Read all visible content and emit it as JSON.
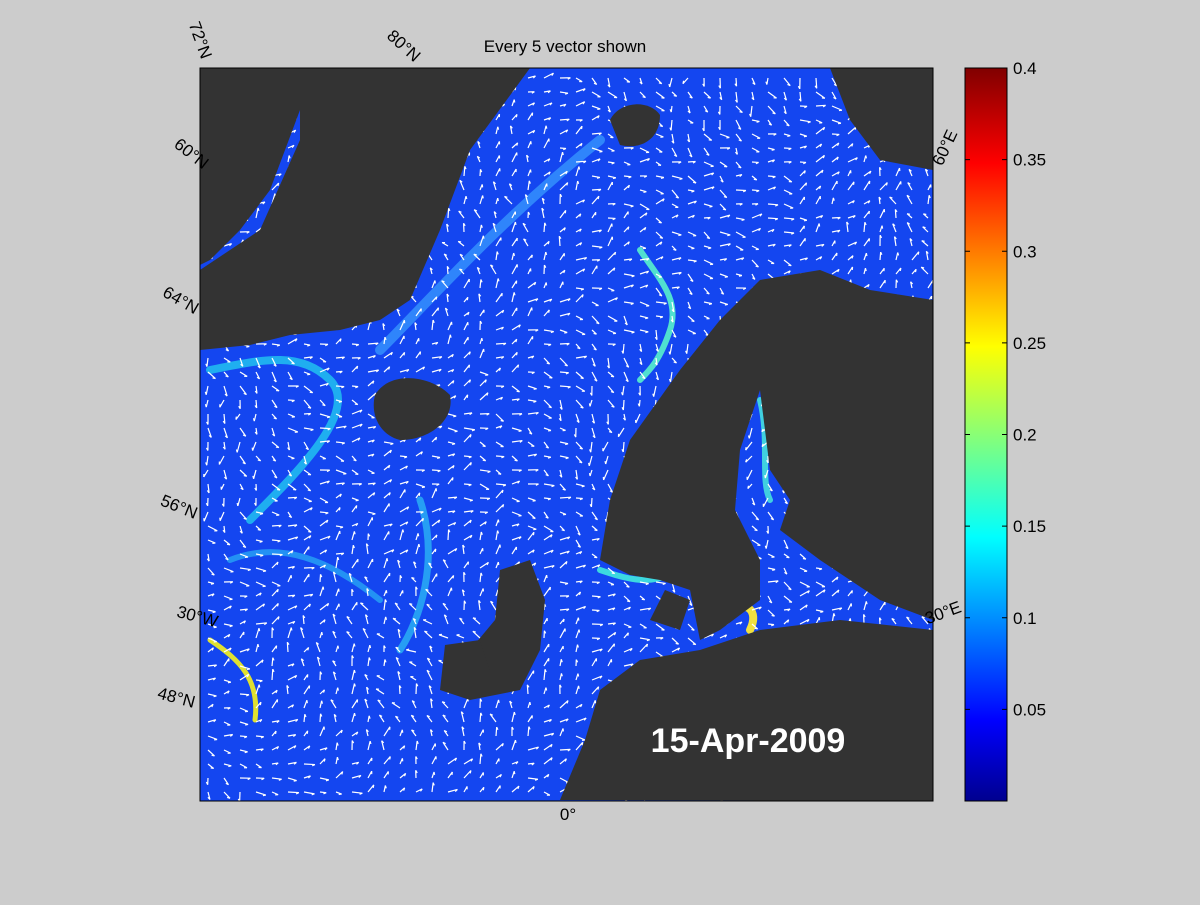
{
  "map": {
    "title": "Every 5 vector shown",
    "date": "15-Apr-2009",
    "lat_labels": [
      "72°N",
      "80°N",
      "60°N",
      "64°N",
      "56°N",
      "48°N"
    ],
    "lon_labels": [
      "30°W",
      "0°",
      "30°E",
      "60°E"
    ],
    "colorbar": {
      "lim": [
        0,
        0.4
      ],
      "ticks": [
        0.05,
        0.1,
        0.15,
        0.2,
        0.25,
        0.3,
        0.35,
        0.4
      ]
    }
  }
}
